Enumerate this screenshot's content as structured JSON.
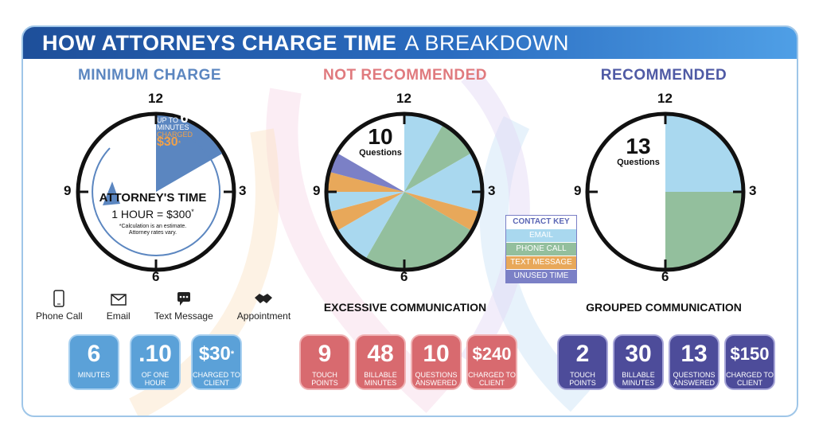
{
  "header": {
    "title_bold": "HOW ATTORNEYS CHARGE TIME",
    "title_light": "A BREAKDOWN"
  },
  "sections": {
    "minimum": {
      "title": "MINIMUM CHARGE",
      "color": "#5b86c0"
    },
    "not_recommended": {
      "title": "NOT RECOMMENDED",
      "color": "#e07a7e"
    },
    "recommended": {
      "title": "RECOMMENDED",
      "color": "#4f5aa5"
    }
  },
  "hours": {
    "h12": "12",
    "h3": "3",
    "h6": "6",
    "h9": "9"
  },
  "clock1": {
    "up_to": "UP TO",
    "minutes_num": "6",
    "minutes_label": "MINUTES",
    "charged_label": "CHARGED",
    "charged_value": "$30",
    "charged_mark": "*",
    "attorney_time": "ATTORNEY'S TIME",
    "hour_rate": "1 HOUR = $300",
    "hour_rate_mark": "*",
    "note": "*Calculation is an estimate. Attorney rates vary."
  },
  "clock2": {
    "count": "10",
    "label": "Questions"
  },
  "clock3": {
    "count": "13",
    "label": "Questions"
  },
  "contact_key": {
    "title": "CONTACT KEY",
    "items": [
      {
        "label": "EMAIL",
        "color": "#a9d8ef",
        "text_color": "#ffffff"
      },
      {
        "label": "PHONE CALL",
        "color": "#93bf9d",
        "text_color": "#ffffff"
      },
      {
        "label": "TEXT MESSAGE",
        "color": "#e8a85a",
        "text_color": "#ffffff"
      },
      {
        "label": "UNUSED TIME",
        "color": "#7b80c6",
        "text_color": "#ffffff"
      }
    ]
  },
  "icons": {
    "phone": "Phone Call",
    "email": "Email",
    "text": "Text Message",
    "appointment": "Appointment"
  },
  "subtitles": {
    "excessive": "EXCESSIVE COMMUNICATION",
    "grouped": "GROUPED COMMUNICATION"
  },
  "stats": {
    "minimum": [
      {
        "value": "6",
        "mark": "",
        "label": "MINUTES"
      },
      {
        "value": ".10",
        "mark": "",
        "label": "OF ONE HOUR"
      },
      {
        "value": "$30",
        "mark": "*",
        "label": "CHARGED TO CLIENT"
      }
    ],
    "excessive": [
      {
        "value": "9",
        "label": "TOUCH POINTS"
      },
      {
        "value": "48",
        "label": "BILLABLE MINUTES"
      },
      {
        "value": "10",
        "label": "QUESTIONS ANSWERED"
      },
      {
        "value": "$240",
        "label": "CHARGED TO CLIENT"
      }
    ],
    "grouped": [
      {
        "value": "2",
        "label": "TOUCH POINTS"
      },
      {
        "value": "30",
        "label": "BILLABLE MINUTES"
      },
      {
        "value": "13",
        "label": "QUESTIONS ANSWERED"
      },
      {
        "value": "$150",
        "label": "CHARGED TO CLIENT"
      }
    ]
  }
}
